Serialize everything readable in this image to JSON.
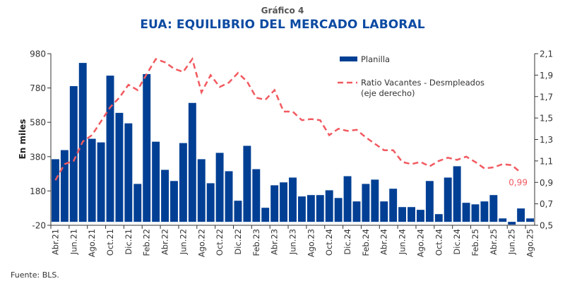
{
  "header": {
    "subtitle": "Gráfico 4",
    "title": "EUA: EQUILIBRIO DEL MERCADO LABORAL"
  },
  "footer": {
    "source": "Fuente: BLS."
  },
  "colors": {
    "bar": "#003f94",
    "line": "#f15a60",
    "title": "#0b4aa2",
    "axis": "#333333"
  },
  "chart_data": {
    "type": "bar",
    "title": "EUA: EQUILIBRIO DEL MERCADO LABORAL",
    "ylabel": "En miles",
    "xlabel": "",
    "ylim": [
      -20,
      980
    ],
    "y2lim": [
      0.5,
      2.1
    ],
    "yticks": [
      "980",
      "780",
      "580",
      "380",
      "180",
      "-20"
    ],
    "yticks_values": [
      980,
      780,
      580,
      380,
      180,
      -20
    ],
    "y2ticks": [
      "2,1",
      "1,9",
      "1,7",
      "1,5",
      "1,3",
      "1,1",
      "0,9",
      "0,7",
      "0,5"
    ],
    "y2ticks_values": [
      2.1,
      1.9,
      1.7,
      1.5,
      1.3,
      1.1,
      0.9,
      0.7,
      0.5
    ],
    "grid": false,
    "legend_position": "top-right",
    "xtick_labels": [
      "Abr.21",
      "Jun.21",
      "Ago.21",
      "Oct.21",
      "Dic.21",
      "Feb.22",
      "Abr.22",
      "Jun.22",
      "Ago.22",
      "Oct.22",
      "Dic.22",
      "Feb.23",
      "Abr.23",
      "Jun.23",
      "Ago.23",
      "Oct.24",
      "Dic.24",
      "Feb.24",
      "Abr.24",
      "Jun.24",
      "Ago.24",
      "Oct.24",
      "Dic.24",
      "Feb.25",
      "Abr.25",
      "Jun.25",
      "Ago.25"
    ],
    "series": [
      {
        "name": "Planilla",
        "type": "bar",
        "axis": "left",
        "values": [
          365,
          418,
          791,
          926,
          484,
          463,
          852,
          635,
          574,
          221,
          861,
          467,
          303,
          238,
          459,
          693,
          365,
          225,
          402,
          295,
          123,
          443,
          307,
          82,
          213,
          230,
          258,
          148,
          156,
          156,
          184,
          139,
          266,
          119,
          221,
          246,
          119,
          193,
          86,
          86,
          70,
          238,
          45,
          258,
          324,
          111,
          102,
          119,
          156,
          20,
          -16,
          78,
          20
        ]
      },
      {
        "name": "Ratio Vacantes - Desmpleados",
        "name_line2": "(eje derecho)",
        "type": "line",
        "axis": "right",
        "values": [
          0.92,
          1.07,
          1.1,
          1.28,
          1.34,
          1.47,
          1.6,
          1.69,
          1.81,
          1.76,
          1.91,
          2.05,
          2.02,
          1.96,
          1.93,
          2.05,
          1.74,
          1.9,
          1.79,
          1.83,
          1.92,
          1.84,
          1.69,
          1.67,
          1.76,
          1.56,
          1.56,
          1.48,
          1.49,
          1.48,
          1.34,
          1.4,
          1.38,
          1.39,
          1.32,
          1.26,
          1.2,
          1.2,
          1.09,
          1.07,
          1.09,
          1.05,
          1.1,
          1.13,
          1.11,
          1.14,
          1.09,
          1.03,
          1.04,
          1.07,
          1.06,
          0.99
        ]
      }
    ],
    "annotations": [
      {
        "text": "0,99",
        "series": "Ratio Vacantes - Desmpleados",
        "index": 51
      }
    ]
  }
}
